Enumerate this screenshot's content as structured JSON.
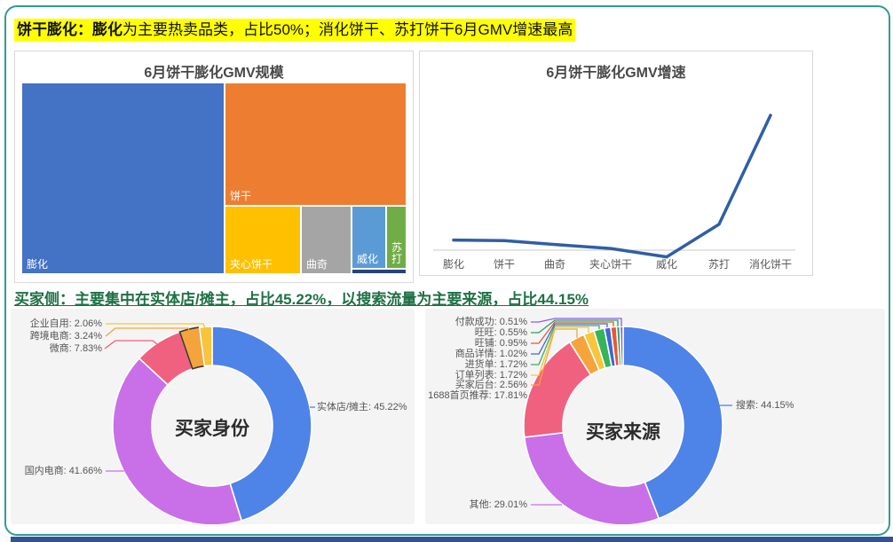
{
  "page": {
    "border_color": "#2f9e8f",
    "bottom_bar_color": "#2f5496",
    "header1": {
      "bold": "饼干膨化：膨化",
      "rest": "为主要热卖品类，占比50%；消化饼干、苏打饼干6月GMV增速最高",
      "highlight_color": "#ffff00"
    },
    "header2": {
      "text": "买家侧：主要集中在实体店/摊主，占比45.22%，以搜索流量为主要来源，占比44.15%",
      "color": "#1e7145"
    }
  },
  "chart_data": [
    {
      "type": "heatmap",
      "subtype": "treemap",
      "title": "6月饼干膨化GMV规模",
      "value_labels_visible": false,
      "note": "Treemap; shares estimated from rectangle areas; header states 膨化 = 50%",
      "items": [
        {
          "label": "膨化",
          "share_pct_est": 50,
          "color": "#4472c4"
        },
        {
          "label": "饼干",
          "share_pct_est": 30,
          "color": "#ed7d31"
        },
        {
          "label": "夹心饼干",
          "share_pct_est": 8,
          "color": "#ffc000"
        },
        {
          "label": "曲奇",
          "share_pct_est": 5,
          "color": "#a5a5a5"
        },
        {
          "label": "威化",
          "share_pct_est": 4,
          "color": "#5b9bd5"
        },
        {
          "label": "苏打",
          "share_pct_est": 2,
          "color": "#70ad47"
        },
        {
          "label": "",
          "share_pct_est": 1,
          "color": "#264478"
        }
      ]
    },
    {
      "type": "line",
      "title": "6月饼干膨化GMV增速",
      "categories": [
        "膨化",
        "饼干",
        "曲奇",
        "夹心饼干",
        "威化",
        "苏打",
        "消化饼干"
      ],
      "values_est_pct": [
        9,
        8.5,
        5,
        1.5,
        -6,
        23,
        120
      ],
      "value_labels_visible": false,
      "note": "No numeric axis shown; values estimated relative to zero baseline",
      "line_color": "#2f5fa5",
      "axis_color": "#c8c8c8",
      "legend": "none",
      "grid": "off"
    },
    {
      "type": "pie",
      "subtype": "donut",
      "title": "买家身份",
      "label_format": "name: value%",
      "segments": [
        {
          "label": "实体店/摊主",
          "value": 45.22,
          "color": "#4e83e8"
        },
        {
          "label": "国内电商",
          "value": 41.66,
          "color": "#c96fe8"
        },
        {
          "label": "微商",
          "value": 7.83,
          "color": "#f0617f"
        },
        {
          "label": "跨境电商",
          "value": 3.24,
          "color": "#f5a43c",
          "highlighted": true
        },
        {
          "label": "企业自用",
          "value": 2.06,
          "color": "#f6c53d"
        }
      ]
    },
    {
      "type": "pie",
      "subtype": "donut",
      "title": "买家来源",
      "label_format": "name: value%",
      "segments": [
        {
          "label": "搜索",
          "value": 44.15,
          "color": "#4e83e8"
        },
        {
          "label": "其他",
          "value": 29.01,
          "color": "#c96fe8"
        },
        {
          "label": "1688首页推荐",
          "value": 17.81,
          "color": "#f0617f"
        },
        {
          "label": "买家后台",
          "value": 2.56,
          "color": "#f5a43c"
        },
        {
          "label": "订单列表",
          "value": 1.72,
          "color": "#f6c53d"
        },
        {
          "label": "进货单",
          "value": 1.72,
          "color": "#35b55a"
        },
        {
          "label": "商品详情",
          "value": 1.02,
          "color": "#3f66d8"
        },
        {
          "label": "旺铺",
          "value": 0.95,
          "color": "#e8563a"
        },
        {
          "label": "旺旺",
          "value": 0.55,
          "color": "#2aa05c"
        },
        {
          "label": "付款成功",
          "value": 0.51,
          "color": "#8a5cf0"
        }
      ]
    }
  ]
}
